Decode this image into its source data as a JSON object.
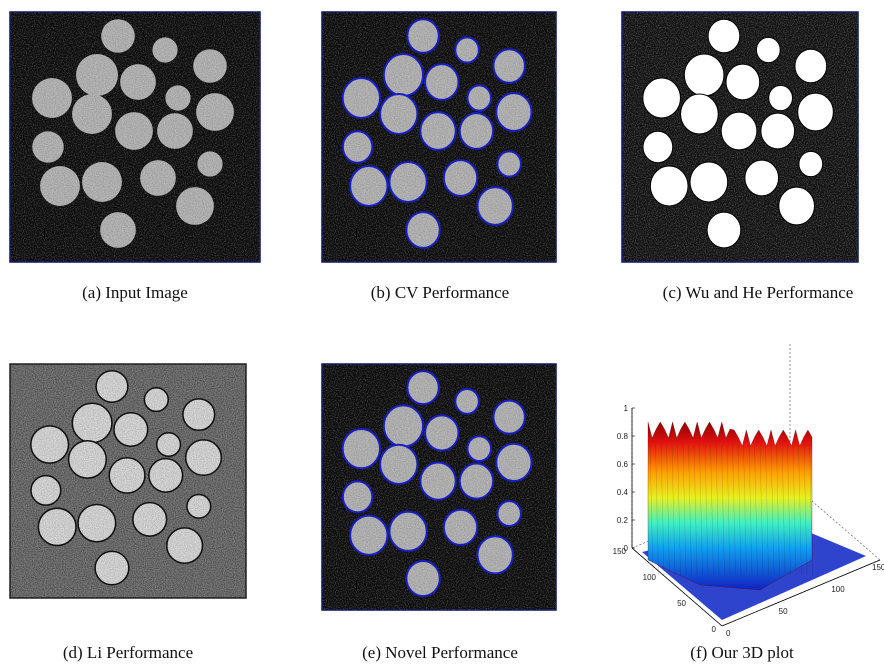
{
  "figure": {
    "subfigures": [
      {
        "caption": "(a) Input Image"
      },
      {
        "caption": "(b) CV Performance"
      },
      {
        "caption": "(c) Wu and He Performance"
      },
      {
        "caption": "(d) Li Performance"
      },
      {
        "caption": "(e) Novel Performance"
      },
      {
        "caption": "(f) Our 3D plot"
      }
    ],
    "plot_3d": {
      "zticks": [
        0,
        0.2,
        0.4,
        0.6,
        0.8,
        1
      ],
      "xticks": [
        0,
        50,
        100,
        150
      ],
      "yticks": [
        0,
        50,
        100,
        150
      ]
    }
  }
}
